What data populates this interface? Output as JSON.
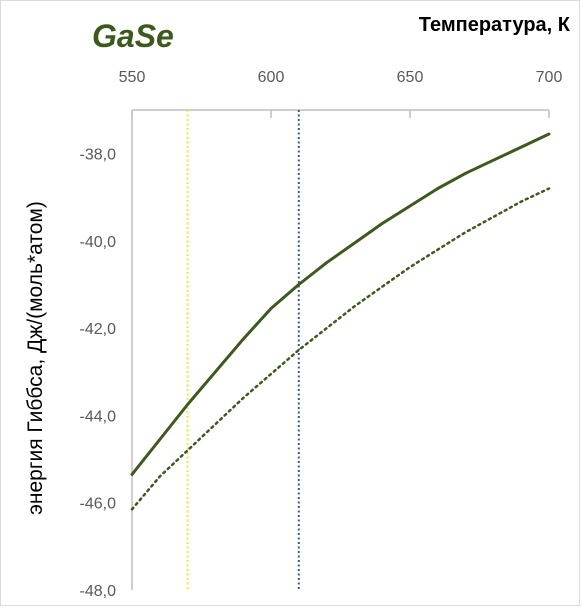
{
  "chart_data": {
    "type": "line",
    "title": "GaSe",
    "xlabel": "Температура, К",
    "ylabel": "энергия Гиббса, Дж/(моль*атом)",
    "x_axis_position": "top",
    "xlim": [
      550,
      700
    ],
    "ylim": [
      -48,
      -37
    ],
    "x_ticks": [
      "550",
      "600",
      "650",
      "700"
    ],
    "y_ticks": [
      "-38,0",
      "-40,0",
      "-42,0",
      "-44,0",
      "-46,0",
      "-48,0"
    ],
    "grid": false,
    "series": [
      {
        "style": "solid",
        "color": "#3d5a1e",
        "x": [
          550,
          560,
          570,
          580,
          590,
          600,
          610,
          620,
          630,
          640,
          650,
          660,
          670,
          680,
          690,
          700
        ],
        "y": [
          -45.35,
          -44.55,
          -43.75,
          -43.0,
          -42.25,
          -41.55,
          -41.0,
          -40.5,
          -40.05,
          -39.6,
          -39.2,
          -38.8,
          -38.45,
          -38.15,
          -37.85,
          -37.55
        ]
      },
      {
        "style": "dotted",
        "color": "#3d5a1e",
        "x": [
          550,
          560,
          570,
          580,
          590,
          600,
          610,
          620,
          630,
          640,
          650,
          660,
          670,
          680,
          690,
          700
        ],
        "y": [
          -46.15,
          -45.4,
          -44.8,
          -44.2,
          -43.6,
          -43.05,
          -42.5,
          -42.0,
          -41.5,
          -41.05,
          -40.6,
          -40.2,
          -39.8,
          -39.45,
          -39.1,
          -38.8
        ]
      }
    ],
    "vertical_lines": [
      {
        "x": 570,
        "color": "#f2e34d",
        "style": "dotted"
      },
      {
        "x": 610,
        "color": "#3a5a9a",
        "style": "dotted"
      }
    ]
  }
}
